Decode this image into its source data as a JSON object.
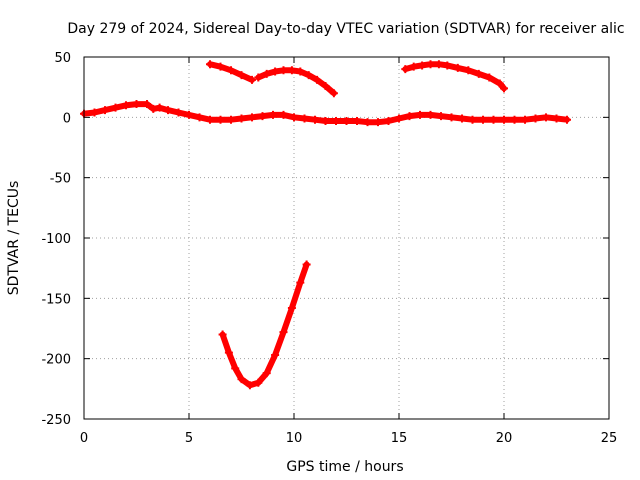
{
  "chart_data": {
    "type": "scatter",
    "title": "Day 279 of 2024, Sidereal Day-to-day VTEC variation (SDTVAR) for receiver alic",
    "xlabel": "GPS time / hours",
    "ylabel": "SDTVAR / TECUs",
    "xlim": [
      0,
      25
    ],
    "ylim": [
      -250,
      50
    ],
    "xticks": [
      0,
      5,
      10,
      15,
      20,
      25
    ],
    "yticks": [
      -250,
      -200,
      -150,
      -100,
      -50,
      0,
      50
    ],
    "grid": true,
    "marker_color": "#ff0000",
    "series": [
      {
        "points": [
          [
            0,
            3
          ],
          [
            0.5,
            4
          ],
          [
            1,
            6
          ],
          [
            1.5,
            8
          ],
          [
            2,
            10
          ],
          [
            2.5,
            11
          ],
          [
            3,
            11
          ],
          [
            3.3,
            7
          ],
          [
            3.6,
            8
          ],
          [
            4,
            6
          ],
          [
            4.5,
            4
          ],
          [
            5,
            2
          ],
          [
            5.5,
            0
          ],
          [
            6,
            -2
          ],
          [
            6.5,
            -2
          ],
          [
            7,
            -2
          ],
          [
            7.5,
            -1
          ],
          [
            8,
            0
          ],
          [
            8.5,
            1
          ],
          [
            9,
            2
          ],
          [
            9.5,
            2
          ],
          [
            10,
            0
          ],
          [
            10.5,
            -1
          ],
          [
            11,
            -2
          ],
          [
            11.5,
            -3
          ],
          [
            12,
            -3
          ],
          [
            12.5,
            -3
          ],
          [
            13,
            -3
          ],
          [
            13.5,
            -4
          ],
          [
            14,
            -4
          ],
          [
            14.5,
            -3
          ],
          [
            15,
            -1
          ],
          [
            15.5,
            1
          ],
          [
            16,
            2
          ],
          [
            16.5,
            2
          ],
          [
            17,
            1
          ],
          [
            17.5,
            0
          ],
          [
            18,
            -1
          ],
          [
            18.5,
            -2
          ],
          [
            19,
            -2
          ],
          [
            19.5,
            -2
          ],
          [
            20,
            -2
          ],
          [
            20.5,
            -2
          ],
          [
            21,
            -2
          ],
          [
            21.5,
            -1
          ],
          [
            22,
            0
          ],
          [
            22.5,
            -1
          ],
          [
            23,
            -2
          ]
        ]
      },
      {
        "points": [
          [
            6,
            44
          ],
          [
            6.5,
            42
          ],
          [
            7,
            39
          ],
          [
            7.5,
            35
          ],
          [
            8,
            31
          ]
        ]
      },
      {
        "points": [
          [
            8.3,
            33
          ],
          [
            8.7,
            36
          ],
          [
            9.1,
            38
          ],
          [
            9.5,
            39
          ],
          [
            9.9,
            39
          ],
          [
            10.3,
            38
          ],
          [
            10.7,
            35
          ],
          [
            11.1,
            31
          ],
          [
            11.5,
            26
          ],
          [
            11.9,
            20
          ]
        ]
      },
      {
        "points": [
          [
            15.3,
            40
          ],
          [
            15.7,
            42
          ],
          [
            16.1,
            43
          ],
          [
            16.5,
            44
          ],
          [
            16.9,
            44
          ],
          [
            17.3,
            43
          ],
          [
            17.8,
            41
          ],
          [
            18.3,
            39
          ],
          [
            18.8,
            36
          ],
          [
            19.3,
            33
          ],
          [
            19.8,
            28
          ],
          [
            20,
            24
          ]
        ]
      },
      {
        "points": [
          [
            6.6,
            -180
          ],
          [
            6.9,
            -195
          ],
          [
            7.2,
            -208
          ],
          [
            7.5,
            -217
          ],
          [
            7.9,
            -222
          ],
          [
            8.3,
            -220
          ],
          [
            8.7,
            -212
          ],
          [
            9.1,
            -197
          ],
          [
            9.5,
            -178
          ],
          [
            9.9,
            -158
          ],
          [
            10.3,
            -137
          ],
          [
            10.6,
            -122
          ]
        ]
      }
    ]
  }
}
